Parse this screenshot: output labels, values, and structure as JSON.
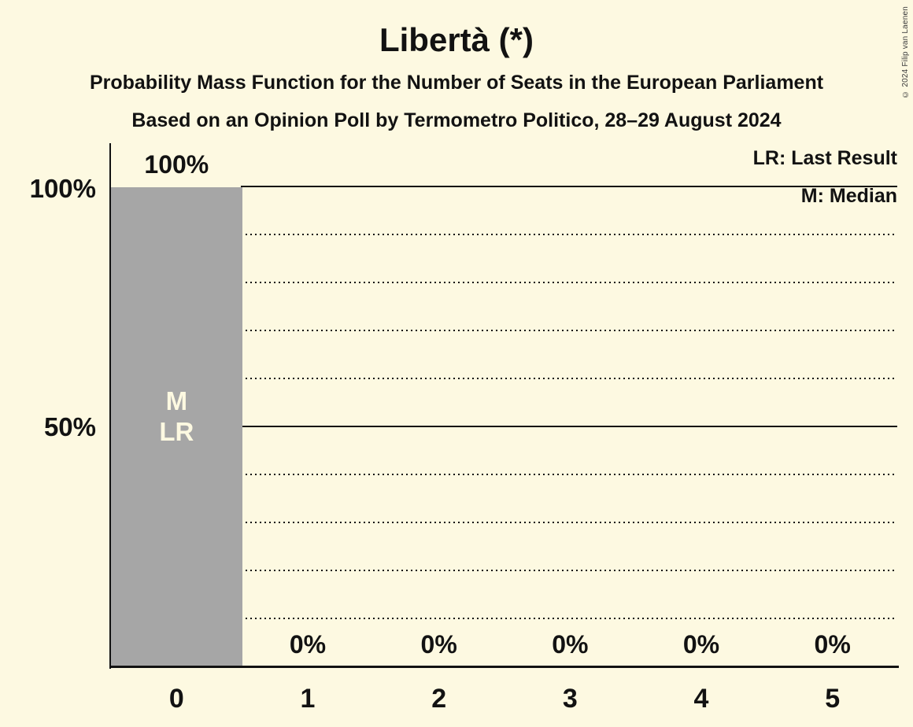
{
  "title": "Libertà (*)",
  "subtitles": {
    "line1": "Probability Mass Function for the Number of Seats in the European Parliament",
    "line2": "Based on an Opinion Poll by Termometro Politico, 28–29 August 2024"
  },
  "copyright": "© 2024 Filip van Laenen",
  "legend": {
    "last_result": "LR: Last Result",
    "median": "M: Median"
  },
  "y_axis": {
    "tick_100": "100%",
    "tick_50": "50%"
  },
  "colors": {
    "background": "#FDF9E1",
    "bar": "#A6A6A6",
    "text": "#121212",
    "bar_text": "#FDF9E1"
  },
  "chart_data": {
    "type": "bar",
    "title": "Libertà (*)",
    "categories": [
      "0",
      "1",
      "2",
      "3",
      "4",
      "5"
    ],
    "values": [
      100,
      0,
      0,
      0,
      0,
      0
    ],
    "value_labels": [
      "100%",
      "0%",
      "0%",
      "0%",
      "0%",
      "0%"
    ],
    "xlabel": "",
    "ylabel": "",
    "ylim": [
      0,
      100
    ],
    "y_solid_gridlines_pct": [
      100,
      50
    ],
    "y_dotted_gridlines_pct": [
      90,
      80,
      70,
      60,
      40,
      30,
      20,
      10
    ],
    "legend_position": "top-right",
    "median_seats": 0,
    "last_result_seats": 0,
    "bar_annotations": [
      {
        "category_index": 0,
        "lines": [
          "M",
          "LR"
        ]
      }
    ]
  }
}
